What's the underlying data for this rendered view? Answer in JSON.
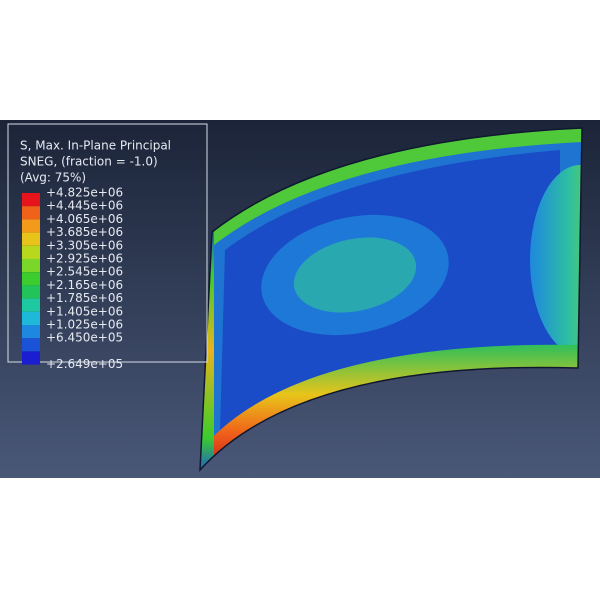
{
  "legend": {
    "title_lines": [
      "S, Max. In-Plane Principal",
      "SNEG, (fraction = -1.0)",
      "(Avg: 75%)"
    ],
    "labels": [
      "+4.825e+06",
      "+4.445e+06",
      "+4.065e+06",
      "+3.685e+06",
      "+3.305e+06",
      "+2.925e+06",
      "+2.545e+06",
      "+2.165e+06",
      "+1.785e+06",
      "+1.405e+06",
      "+1.025e+06",
      "+6.450e+05",
      "+2.649e+05"
    ],
    "colors": [
      "#e8141c",
      "#f0621a",
      "#f39a1a",
      "#e8c41a",
      "#b8d81e",
      "#7ad628",
      "#3ccc2c",
      "#22c45a",
      "#1ec8a0",
      "#1eb8d8",
      "#1e88e0",
      "#1a52d8",
      "#1a1ed0"
    ]
  }
}
